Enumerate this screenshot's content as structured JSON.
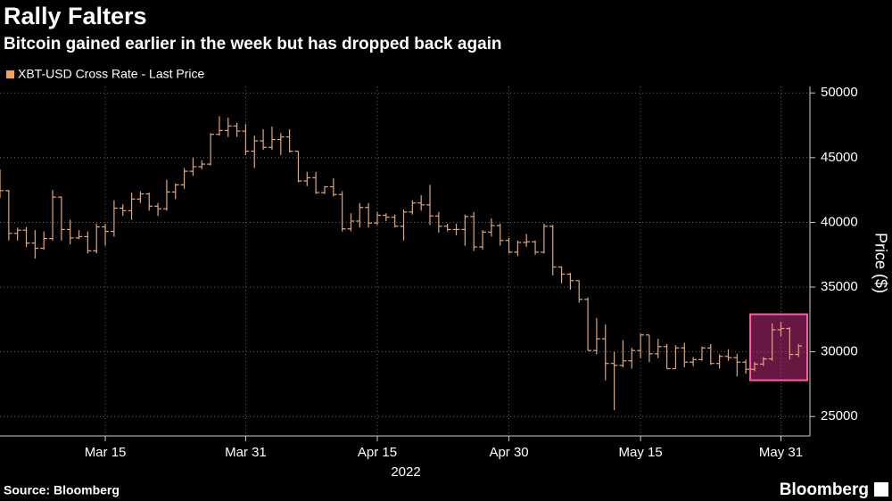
{
  "chart_data": {
    "type": "ohlc",
    "title": "Rally Falters",
    "subtitle": "Bitcoin gained earlier in the week but has dropped back again",
    "y_label": "Price ($)",
    "x_sublabel": "2022",
    "source": "Source: Bloomberg",
    "logo": "Bloomberg",
    "grid": true,
    "x": [
      "2022-03-03",
      "2022-03-04",
      "2022-03-05",
      "2022-03-06",
      "2022-03-07",
      "2022-03-08",
      "2022-03-09",
      "2022-03-10",
      "2022-03-11",
      "2022-03-12",
      "2022-03-13",
      "2022-03-14",
      "2022-03-15",
      "2022-03-16",
      "2022-03-17",
      "2022-03-18",
      "2022-03-19",
      "2022-03-20",
      "2022-03-21",
      "2022-03-22",
      "2022-03-23",
      "2022-03-24",
      "2022-03-25",
      "2022-03-26",
      "2022-03-27",
      "2022-03-28",
      "2022-03-29",
      "2022-03-30",
      "2022-03-31",
      "2022-04-01",
      "2022-04-02",
      "2022-04-03",
      "2022-04-04",
      "2022-04-05",
      "2022-04-06",
      "2022-04-07",
      "2022-04-08",
      "2022-04-09",
      "2022-04-10",
      "2022-04-11",
      "2022-04-12",
      "2022-04-13",
      "2022-04-14",
      "2022-04-15",
      "2022-04-16",
      "2022-04-17",
      "2022-04-18",
      "2022-04-19",
      "2022-04-20",
      "2022-04-21",
      "2022-04-22",
      "2022-04-23",
      "2022-04-24",
      "2022-04-25",
      "2022-04-26",
      "2022-04-27",
      "2022-04-28",
      "2022-04-29",
      "2022-04-30",
      "2022-05-01",
      "2022-05-02",
      "2022-05-03",
      "2022-05-04",
      "2022-05-05",
      "2022-05-06",
      "2022-05-07",
      "2022-05-08",
      "2022-05-09",
      "2022-05-10",
      "2022-05-11",
      "2022-05-12",
      "2022-05-13",
      "2022-05-14",
      "2022-05-15",
      "2022-05-16",
      "2022-05-17",
      "2022-05-18",
      "2022-05-19",
      "2022-05-20",
      "2022-05-21",
      "2022-05-22",
      "2022-05-23",
      "2022-05-24",
      "2022-05-25",
      "2022-05-26",
      "2022-05-27",
      "2022-05-28",
      "2022-05-29",
      "2022-05-30",
      "2022-05-31",
      "2022-06-01",
      "2022-06-02"
    ],
    "series": [
      {
        "name": "XBT-USD Cross Rate - Last Price",
        "color": "#e3a677",
        "open": [
          43900,
          42450,
          39150,
          39400,
          38400,
          38000,
          38750,
          41950,
          39450,
          38800,
          38900,
          37800,
          39650,
          39300,
          41100,
          40900,
          41800,
          42200,
          41250,
          41050,
          42350,
          42900,
          43950,
          44300,
          44500,
          46800,
          47100,
          47450,
          47050,
          45500,
          46300,
          45800,
          46400,
          46600,
          45500,
          43200,
          43450,
          42300,
          42750,
          42150,
          39500,
          40100,
          41150,
          39950,
          40550,
          40400,
          39700,
          40800,
          41500,
          41350,
          40500,
          39700,
          39450,
          39450,
          40450,
          38100,
          39250,
          39750,
          38600,
          37700,
          38450,
          38500,
          37700,
          39700,
          36550,
          36000,
          35500,
          34050,
          30100,
          31000,
          29100,
          28950,
          29300,
          30100,
          31300,
          29850,
          30400,
          28700,
          30300,
          29200,
          29400,
          30300,
          29100,
          29650,
          29550,
          29200,
          28650,
          29050,
          29450,
          31700,
          31800,
          29800
        ],
        "high": [
          44100,
          42500,
          39600,
          39650,
          39400,
          39300,
          42500,
          42000,
          40200,
          39400,
          39300,
          39900,
          39900,
          41700,
          41400,
          42300,
          42400,
          42300,
          41500,
          43300,
          43000,
          44200,
          45000,
          44800,
          46900,
          48200,
          48100,
          47700,
          47600,
          46700,
          47200,
          47400,
          46900,
          47200,
          45500,
          43900,
          43900,
          42800,
          43400,
          42400,
          40700,
          41500,
          41500,
          40800,
          40700,
          40600,
          41000,
          41700,
          42100,
          42900,
          40800,
          39900,
          39900,
          40600,
          40800,
          39400,
          40300,
          39900,
          38800,
          38600,
          39100,
          38600,
          39900,
          39800,
          36600,
          36100,
          35500,
          34200,
          32600,
          32100,
          30000,
          30900,
          30300,
          31400,
          31300,
          31000,
          30600,
          30500,
          30700,
          29600,
          30400,
          30600,
          29800,
          30200,
          29850,
          29400,
          29200,
          29600,
          32200,
          32300,
          31900,
          30600
        ],
        "low": [
          41900,
          38600,
          38600,
          38100,
          37200,
          37900,
          38600,
          38600,
          38300,
          38700,
          37600,
          37600,
          38200,
          38900,
          40500,
          40200,
          41500,
          40900,
          40500,
          40900,
          41800,
          42600,
          43600,
          44100,
          44400,
          46700,
          46600,
          46600,
          45200,
          44200,
          45600,
          45600,
          45200,
          45400,
          43100,
          42800,
          42200,
          42200,
          42000,
          39300,
          39300,
          39600,
          39600,
          39800,
          40100,
          39600,
          38600,
          40600,
          40900,
          39800,
          39200,
          39300,
          39000,
          38200,
          37800,
          37900,
          38900,
          38200,
          37600,
          37400,
          38100,
          37500,
          37600,
          35900,
          35300,
          34800,
          33800,
          30100,
          29800,
          27800,
          25500,
          28800,
          28700,
          29500,
          29200,
          29500,
          28700,
          28700,
          28800,
          28900,
          29300,
          29000,
          28700,
          29300,
          28100,
          28300,
          28500,
          28900,
          29300,
          31200,
          29400,
          29600
        ],
        "close": [
          42450,
          39150,
          39400,
          38400,
          38000,
          38750,
          41950,
          39450,
          38800,
          38900,
          37800,
          39650,
          39300,
          41100,
          40900,
          41800,
          42200,
          41250,
          41050,
          42350,
          42900,
          43950,
          44300,
          44500,
          46800,
          47100,
          47450,
          47050,
          45500,
          46300,
          45800,
          46400,
          46600,
          45500,
          43200,
          43450,
          42300,
          42750,
          42150,
          39500,
          40100,
          41150,
          39950,
          40550,
          40400,
          39700,
          40800,
          41500,
          41350,
          40500,
          39700,
          39450,
          39450,
          40450,
          38100,
          39250,
          39750,
          38600,
          37700,
          38450,
          38500,
          37700,
          39700,
          36550,
          36000,
          35500,
          34050,
          30100,
          31000,
          29100,
          28950,
          29300,
          30100,
          31300,
          29850,
          30400,
          28700,
          30300,
          29200,
          29400,
          30300,
          29100,
          29650,
          29550,
          29200,
          28650,
          29050,
          29450,
          31700,
          31800,
          29800,
          30450
        ]
      }
    ],
    "xlim": [
      "2022-03-03",
      "2022-06-03"
    ],
    "xticks": [
      {
        "value": "2022-03-15",
        "label": "Mar 15"
      },
      {
        "value": "2022-03-31",
        "label": "Mar 31"
      },
      {
        "value": "2022-04-15",
        "label": "Apr 15"
      },
      {
        "value": "2022-04-30",
        "label": "Apr 30"
      },
      {
        "value": "2022-05-15",
        "label": "May 15"
      },
      {
        "value": "2022-05-31",
        "label": "May 31"
      }
    ],
    "ylim": [
      23500,
      50500
    ],
    "yticks": [
      25000,
      30000,
      35000,
      40000,
      45000,
      50000
    ],
    "highlight": {
      "x": [
        "2022-05-28",
        "2022-06-03"
      ],
      "y": [
        27800,
        32900
      ]
    }
  }
}
